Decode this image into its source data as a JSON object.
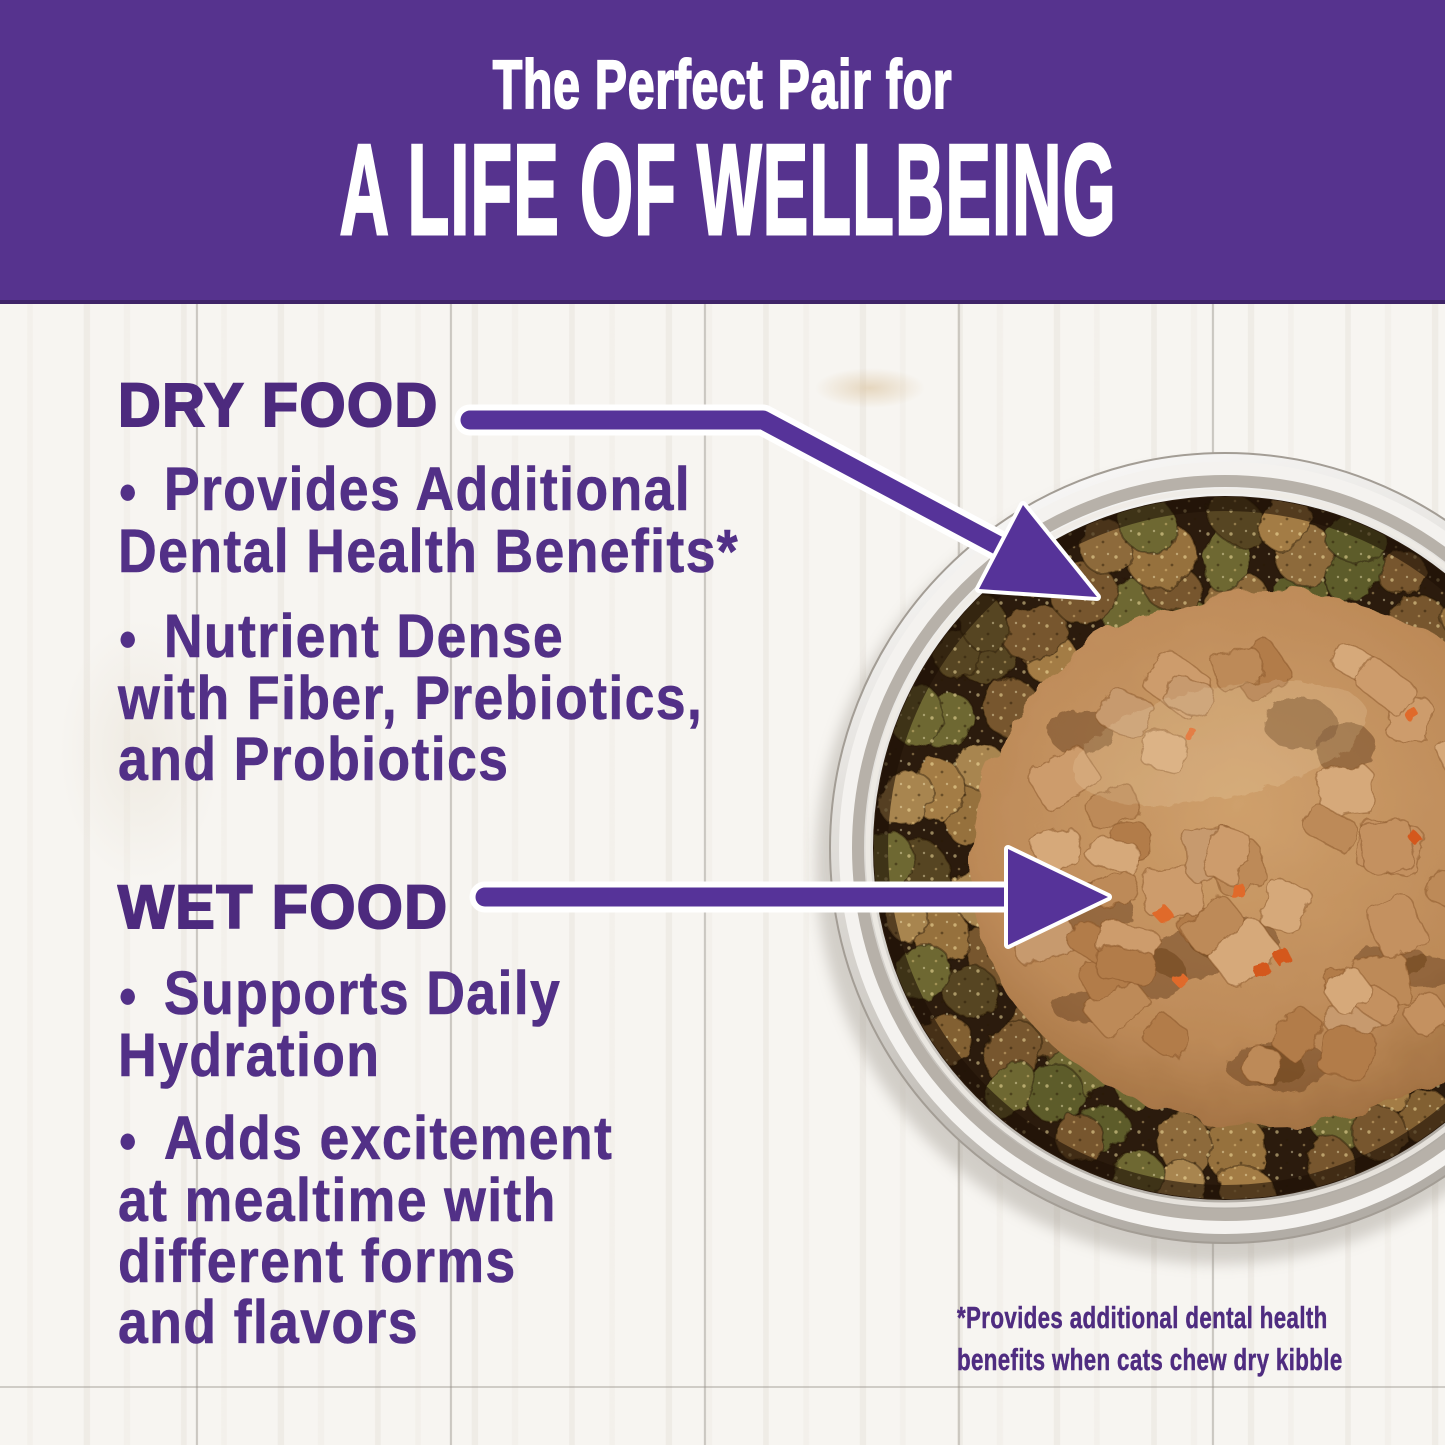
{
  "banner": {
    "kicker": "The Perfect Pair for",
    "title": "A LIFE OF WELLBEING"
  },
  "bullet_glyph": "●",
  "dry": {
    "heading": "DRY FOOD",
    "bullet1": {
      "line1": "Provides Additional",
      "line2": "Dental Health Benefits*"
    },
    "bullet2": {
      "line1": "Nutrient Dense",
      "line2": "with Fiber, Prebiotics,",
      "line3": "and Probiotics"
    }
  },
  "wet": {
    "heading": "WET FOOD",
    "bullet1": {
      "line1": "Supports Daily",
      "line2": "Hydration"
    },
    "bullet2": {
      "line1": "Adds excitement",
      "line2": "at mealtime with",
      "line3": "different forms",
      "line4": "and flavors"
    }
  },
  "footnote": {
    "line1": "*Provides additional dental health",
    "line2": "benefits when cats chew dry kibble"
  },
  "colors": {
    "background": "#f7f5f1",
    "banner_purple": "#56338e",
    "banner_text": "#ffffff",
    "heading_purple": "#4d2a7e",
    "text_purple": "#523087",
    "footnote_purple": "#4f2c80",
    "arrow_purple": "#563399",
    "bowl_steel": "#d9d6d1",
    "kibble_brown": "#96713d",
    "kibble_green": "#6e6832",
    "wet_food_brown": "#bd8a58",
    "carrot_orange": "#d4581f"
  }
}
